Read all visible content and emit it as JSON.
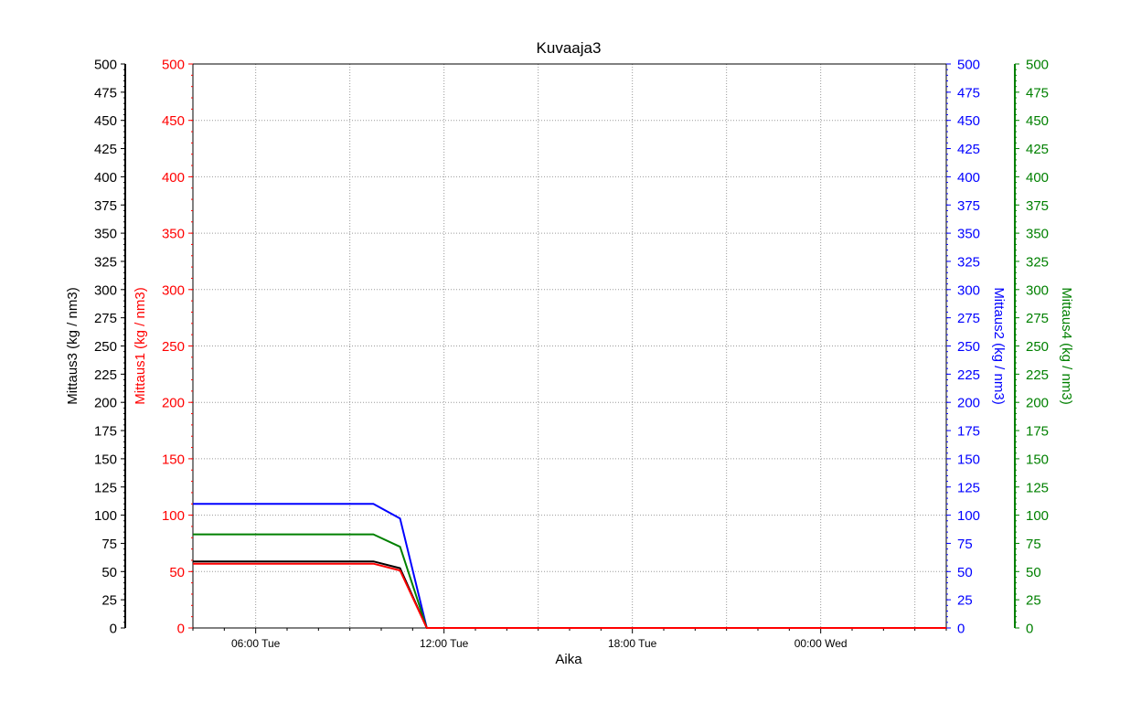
{
  "chart_data": {
    "type": "line",
    "title": "Kuvaaja3",
    "xlabel": "Aika",
    "x_ticks": [
      "06:00 Tue",
      "12:00 Tue",
      "18:00 Tue",
      "00:00 Wed"
    ],
    "x_tick_hours": [
      6,
      12,
      18,
      24
    ],
    "xlim_hours": [
      4,
      28
    ],
    "grid": true,
    "axes": [
      {
        "id": "mittaus3",
        "label": "Mittaus3",
        "unit": "(kg / nm3)",
        "color": "#000000",
        "side": "left-outer",
        "ylim": [
          0,
          500
        ],
        "major_step": 25
      },
      {
        "id": "mittaus1",
        "label": "Mittaus1",
        "unit": "(kg / nm3)",
        "color": "#ff0000",
        "side": "left-inner",
        "ylim": [
          0,
          500
        ],
        "major_step": 50
      },
      {
        "id": "mittaus2",
        "label": "Mittaus2",
        "unit": "(kg / nm3)",
        "color": "#0000ff",
        "side": "right-inner",
        "ylim": [
          0,
          500
        ],
        "major_step": 25
      },
      {
        "id": "mittaus4",
        "label": "Mittaus4",
        "unit": "(kg / nm3)",
        "color": "#008000",
        "side": "right-outer",
        "ylim": [
          0,
          500
        ],
        "major_step": 25
      }
    ],
    "series": [
      {
        "name": "Mittaus2",
        "axis": "mittaus2",
        "color": "#0000ff",
        "x": [
          4,
          9.75,
          10.6,
          11.45,
          28
        ],
        "values": [
          110,
          110,
          97,
          0,
          0
        ]
      },
      {
        "name": "Mittaus4",
        "axis": "mittaus4",
        "color": "#008000",
        "x": [
          4,
          9.75,
          10.6,
          11.45,
          28
        ],
        "values": [
          83,
          83,
          72,
          0,
          0
        ]
      },
      {
        "name": "Mittaus3",
        "axis": "mittaus3",
        "color": "#000000",
        "x": [
          4,
          9.75,
          10.6,
          11.45,
          28
        ],
        "values": [
          59,
          59,
          53,
          0,
          0
        ]
      },
      {
        "name": "Mittaus1",
        "axis": "mittaus1",
        "color": "#ff0000",
        "x": [
          4,
          9.75,
          10.6,
          11.45,
          28
        ],
        "values": [
          57,
          57,
          51,
          0,
          0
        ]
      }
    ]
  }
}
